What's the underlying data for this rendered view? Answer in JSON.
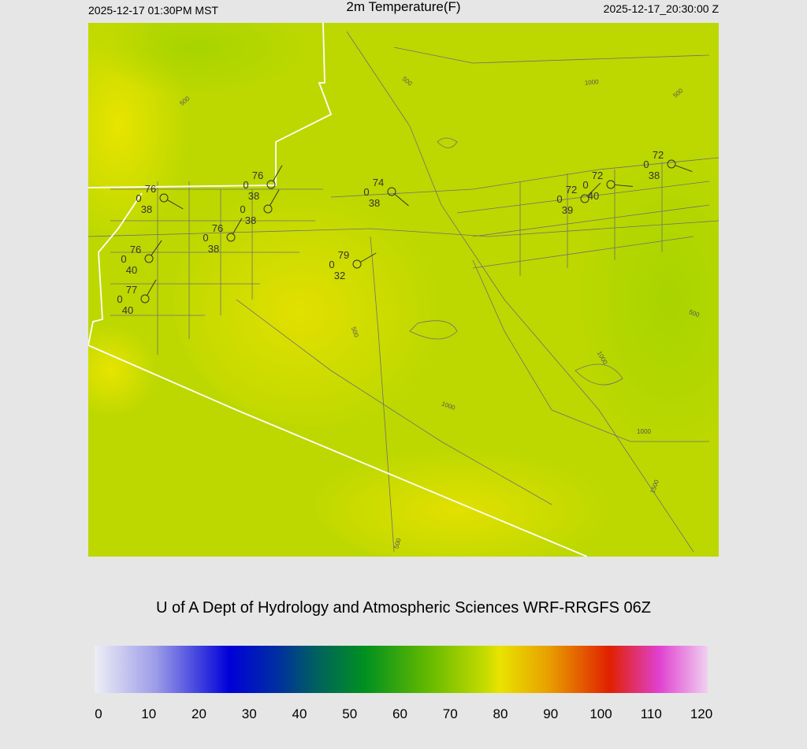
{
  "header": {
    "left": "2025-12-17 01:30PM MST",
    "title": "2m Temperature(F)",
    "right": "2025-12-17_20:30:00 Z"
  },
  "stations": [
    {
      "temp": "76",
      "wind": "0",
      "dew": "38"
    },
    {
      "temp": "76",
      "wind": "0",
      "dew": "38"
    },
    {
      "wind": "0",
      "dew": "38"
    },
    {
      "temp": "76",
      "wind": "0",
      "dew": "38"
    },
    {
      "temp": "76",
      "wind": "0",
      "dew": "40"
    },
    {
      "temp": "77",
      "wind": "0",
      "dew": "40"
    },
    {
      "temp": "74",
      "wind": "0",
      "dew": "38"
    },
    {
      "temp": "79",
      "wind": "0",
      "dew": "32"
    },
    {
      "temp": "72",
      "wind": "0",
      "dew": "39"
    },
    {
      "temp": "72",
      "wind": "0",
      "dew": "40"
    },
    {
      "temp": "72",
      "wind": "0",
      "dew": "38"
    }
  ],
  "contour_labels": [
    "500",
    "500",
    "1000",
    "500",
    "500",
    "500",
    "1000",
    "1000",
    "1000",
    "1500",
    "500"
  ],
  "credit": "U of A Dept of Hydrology and Atmospheric Sciences WRF-RRGFS 06Z",
  "colorbar": {
    "ticks": [
      0,
      10,
      20,
      30,
      40,
      50,
      60,
      70,
      80,
      90,
      100,
      110,
      120
    ]
  }
}
